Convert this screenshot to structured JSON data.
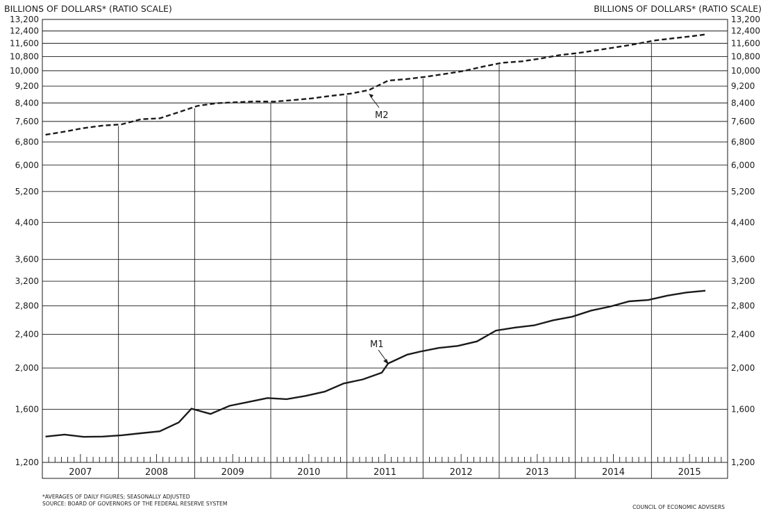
{
  "chart_data": {
    "type": "line",
    "left_axis_title": "BILLIONS OF DOLLARS* (RATIO SCALE)",
    "right_axis_title": "BILLIONS OF DOLLARS* (RATIO SCALE)",
    "y_scale": "log",
    "ylim": [
      1200,
      13200
    ],
    "y_ticks": [
      1200,
      1600,
      2000,
      2400,
      2800,
      3200,
      3600,
      4400,
      5200,
      6000,
      6800,
      7600,
      8400,
      9200,
      10000,
      10800,
      11600,
      12400,
      13200
    ],
    "y_tick_labels": [
      "1,200",
      "1,600",
      "2,000",
      "2,400",
      "2,800",
      "3,200",
      "3,600",
      "4,400",
      "5,200",
      "6,000",
      "6,800",
      "7,600",
      "8,400",
      "9,200",
      "10,000",
      "10,800",
      "11,600",
      "12,400",
      "13,200"
    ],
    "xlim": [
      "2007-01",
      "2015-12"
    ],
    "categories": [
      "2007",
      "2008",
      "2009",
      "2010",
      "2011",
      "2012",
      "2013",
      "2014",
      "2015"
    ],
    "gridlines": "horizontal at y ticks; vertical at year boundaries",
    "series": [
      {
        "name": "M2",
        "style": "dashed",
        "x": [
          "2007-01",
          "2007-04",
          "2007-07",
          "2007-10",
          "2008-01",
          "2008-04",
          "2008-07",
          "2008-10",
          "2009-01",
          "2009-04",
          "2009-07",
          "2009-10",
          "2010-01",
          "2010-04",
          "2010-07",
          "2010-10",
          "2011-01",
          "2011-04",
          "2011-07",
          "2011-10",
          "2012-01",
          "2012-04",
          "2012-07",
          "2012-10",
          "2013-01",
          "2013-04",
          "2013-07",
          "2013-10",
          "2014-01",
          "2014-04",
          "2014-07",
          "2014-10",
          "2015-01",
          "2015-04",
          "2015-07",
          "2015-09"
        ],
        "values": [
          7070,
          7190,
          7330,
          7430,
          7480,
          7690,
          7730,
          7990,
          8270,
          8390,
          8430,
          8470,
          8460,
          8530,
          8610,
          8730,
          8830,
          9010,
          9480,
          9560,
          9680,
          9830,
          9990,
          10230,
          10440,
          10520,
          10680,
          10880,
          11010,
          11180,
          11360,
          11550,
          11780,
          11920,
          12060,
          12170
        ]
      },
      {
        "name": "M1",
        "style": "solid",
        "x": [
          "2007-01",
          "2007-04",
          "2007-07",
          "2007-10",
          "2008-01",
          "2008-04",
          "2008-07",
          "2008-10",
          "2008-12",
          "2009-03",
          "2009-06",
          "2009-09",
          "2009-12",
          "2010-03",
          "2010-06",
          "2010-09",
          "2010-12",
          "2011-03",
          "2011-06",
          "2011-07",
          "2011-10",
          "2011-12",
          "2012-03",
          "2012-06",
          "2012-09",
          "2012-12",
          "2013-03",
          "2013-06",
          "2013-09",
          "2013-12",
          "2014-03",
          "2014-06",
          "2014-09",
          "2014-12",
          "2015-03",
          "2015-06",
          "2015-09"
        ],
        "values": [
          1380,
          1395,
          1378,
          1380,
          1390,
          1405,
          1420,
          1490,
          1605,
          1560,
          1630,
          1665,
          1700,
          1690,
          1720,
          1760,
          1840,
          1880,
          1950,
          2050,
          2150,
          2185,
          2230,
          2255,
          2310,
          2450,
          2490,
          2520,
          2590,
          2640,
          2730,
          2790,
          2870,
          2890,
          2960,
          3010,
          3040
        ]
      }
    ],
    "annotations": [
      "M2",
      "M1"
    ],
    "footnote": "*AVERAGES OF DAILY FIGURES; SEASONALLY ADJUSTED",
    "source": "SOURCE: BOARD OF GOVERNORS OF THE FEDERAL RESERVE SYSTEM",
    "credit": "COUNCIL OF ECONOMIC ADVISERS"
  }
}
